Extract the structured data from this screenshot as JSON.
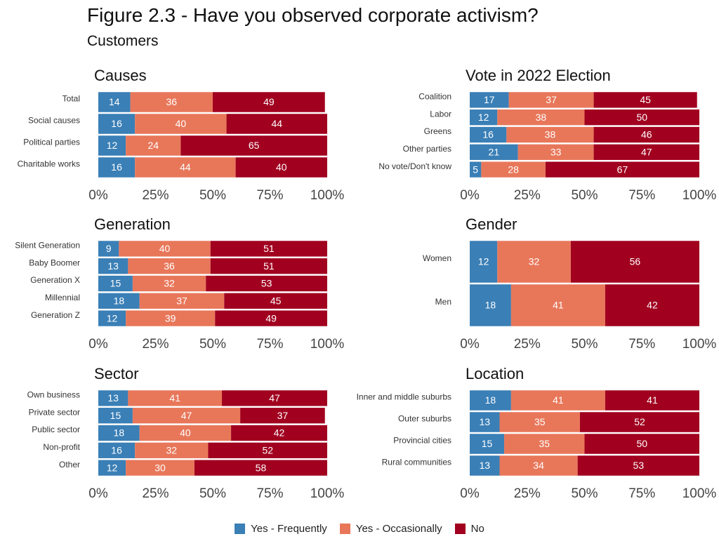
{
  "title": "Figure 2.3 - Have you observed corporate activism?",
  "subtitle": "Customers",
  "colors": {
    "yes_frequently": "#3a7fb6",
    "yes_occasionally": "#e8775a",
    "no": "#a1001f"
  },
  "legend": [
    {
      "label": "Yes - Frequently",
      "color": "#3a7fb6"
    },
    {
      "label": "Yes - Occasionally",
      "color": "#e8775a"
    },
    {
      "label": "No",
      "color": "#a1001f"
    }
  ],
  "chart_data": [
    {
      "type": "bar",
      "stacked": true,
      "orientation": "horizontal",
      "title": "Causes",
      "xlim": [
        0,
        100
      ],
      "xticks": [
        "0%",
        "25%",
        "50%",
        "75%",
        "100%"
      ],
      "categories": [
        "Total",
        "Social causes",
        "Political parties",
        "Charitable works"
      ],
      "series": [
        {
          "name": "Yes - Frequently",
          "values": [
            14,
            16,
            12,
            16
          ]
        },
        {
          "name": "Yes - Occasionally",
          "values": [
            36,
            40,
            24,
            44
          ]
        },
        {
          "name": "No",
          "values": [
            49,
            44,
            65,
            40
          ]
        }
      ]
    },
    {
      "type": "bar",
      "stacked": true,
      "orientation": "horizontal",
      "title": "Vote in 2022 Election",
      "xlim": [
        0,
        100
      ],
      "xticks": [
        "0%",
        "25%",
        "50%",
        "75%",
        "100%"
      ],
      "categories": [
        "Coalition",
        "Labor",
        "Greens",
        "Other parties",
        "No vote/Don't know"
      ],
      "series": [
        {
          "name": "Yes - Frequently",
          "values": [
            17,
            12,
            16,
            21,
            5
          ]
        },
        {
          "name": "Yes - Occasionally",
          "values": [
            37,
            38,
            38,
            33,
            28
          ]
        },
        {
          "name": "No",
          "values": [
            45,
            50,
            46,
            47,
            67
          ]
        }
      ]
    },
    {
      "type": "bar",
      "stacked": true,
      "orientation": "horizontal",
      "title": "Generation",
      "xlim": [
        0,
        100
      ],
      "xticks": [
        "0%",
        "25%",
        "50%",
        "75%",
        "100%"
      ],
      "categories": [
        "Silent Generation",
        "Baby Boomer",
        "Generation X",
        "Millennial",
        "Generation Z"
      ],
      "series": [
        {
          "name": "Yes - Frequently",
          "values": [
            9,
            13,
            15,
            18,
            12
          ]
        },
        {
          "name": "Yes - Occasionally",
          "values": [
            40,
            36,
            32,
            37,
            39
          ]
        },
        {
          "name": "No",
          "values": [
            51,
            51,
            53,
            45,
            49
          ]
        }
      ]
    },
    {
      "type": "bar",
      "stacked": true,
      "orientation": "horizontal",
      "title": "Gender",
      "xlim": [
        0,
        100
      ],
      "xticks": [
        "0%",
        "25%",
        "50%",
        "75%",
        "100%"
      ],
      "categories": [
        "Women",
        "Men"
      ],
      "series": [
        {
          "name": "Yes - Frequently",
          "values": [
            12,
            18
          ]
        },
        {
          "name": "Yes - Occasionally",
          "values": [
            32,
            41
          ]
        },
        {
          "name": "No",
          "values": [
            56,
            42
          ]
        }
      ]
    },
    {
      "type": "bar",
      "stacked": true,
      "orientation": "horizontal",
      "title": "Sector",
      "xlim": [
        0,
        100
      ],
      "xticks": [
        "0%",
        "25%",
        "50%",
        "75%",
        "100%"
      ],
      "categories": [
        "Own business",
        "Private sector",
        "Public sector",
        "Non-profit",
        "Other"
      ],
      "series": [
        {
          "name": "Yes - Frequently",
          "values": [
            13,
            15,
            18,
            16,
            12
          ]
        },
        {
          "name": "Yes - Occasionally",
          "values": [
            41,
            47,
            40,
            32,
            30
          ]
        },
        {
          "name": "No",
          "values": [
            47,
            37,
            42,
            52,
            58
          ]
        }
      ]
    },
    {
      "type": "bar",
      "stacked": true,
      "orientation": "horizontal",
      "title": "Location",
      "xlim": [
        0,
        100
      ],
      "xticks": [
        "0%",
        "25%",
        "50%",
        "75%",
        "100%"
      ],
      "categories": [
        "Inner and middle suburbs",
        "Outer suburbs",
        "Provincial cities",
        "Rural communities"
      ],
      "series": [
        {
          "name": "Yes - Frequently",
          "values": [
            18,
            13,
            15,
            13
          ]
        },
        {
          "name": "Yes - Occasionally",
          "values": [
            41,
            35,
            35,
            34
          ]
        },
        {
          "name": "No",
          "values": [
            41,
            52,
            50,
            53
          ]
        }
      ]
    }
  ]
}
